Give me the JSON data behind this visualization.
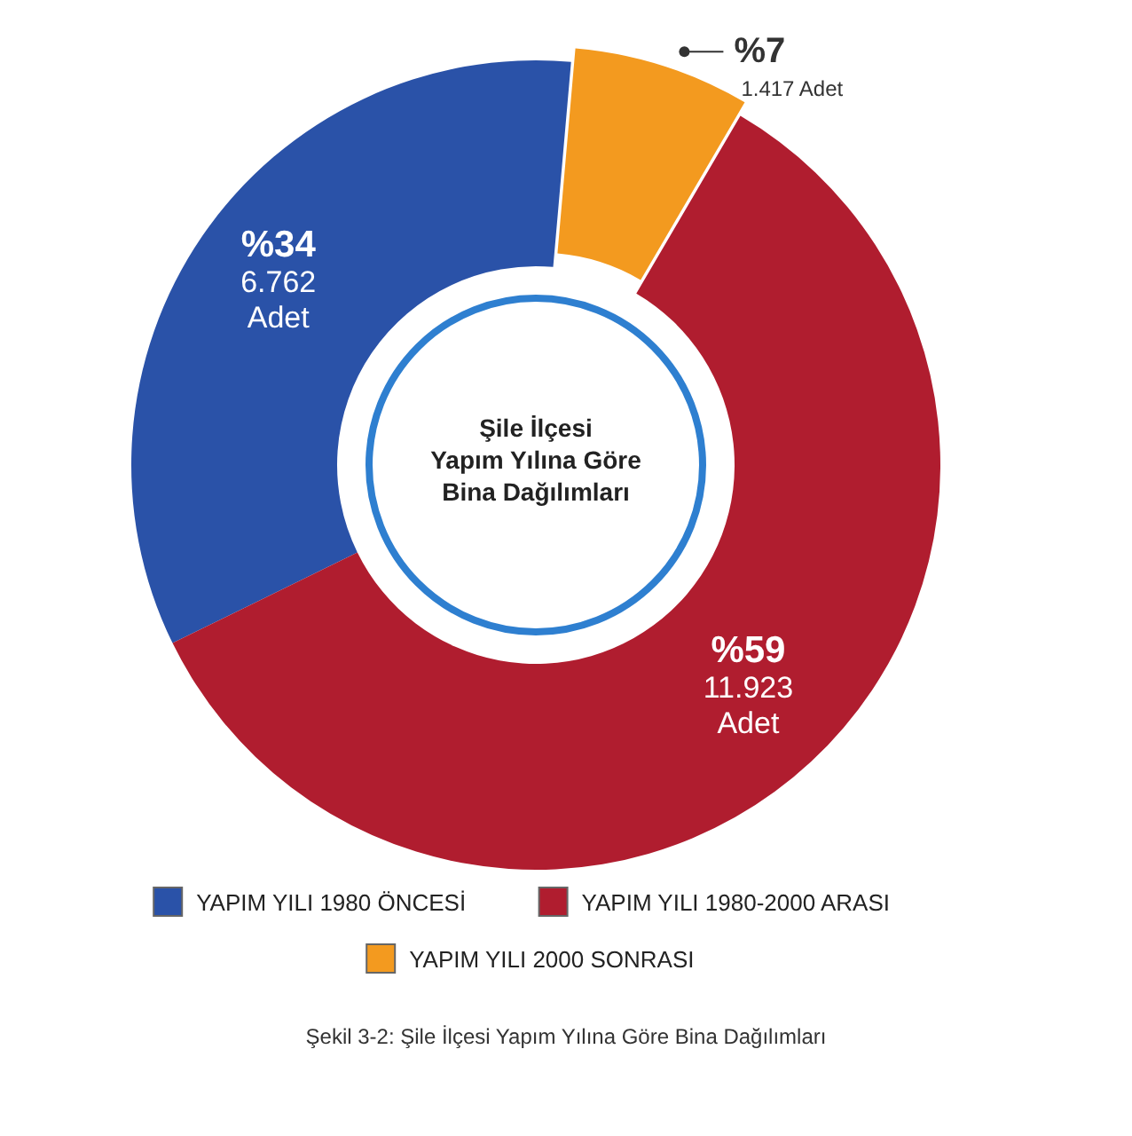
{
  "chart_data": {
    "type": "donut",
    "title": "Şile İlçesi\nYapım Yılına Göre\nBina Dağılımları",
    "categories": [
      "YAPIM YILI 1980 ÖNCESİ",
      "YAPIM YILI 1980-2000 ARASI",
      "YAPIM YILI 2000 SONRASI"
    ],
    "values": [
      6762,
      11923,
      1417
    ],
    "colors": [
      "#2a52a8",
      "#b01d2f",
      "#f39a1f"
    ],
    "value_labels": [
      "%34\n6.762\nAdet",
      "%59\n11.923\nAdet",
      "%7\n1.417 Adet"
    ],
    "legend": "bottom",
    "annotations": [
      "Şekil 3-2: Şile İlçesi Yapım Yılına Göre Bina Dağılımları"
    ]
  }
}
